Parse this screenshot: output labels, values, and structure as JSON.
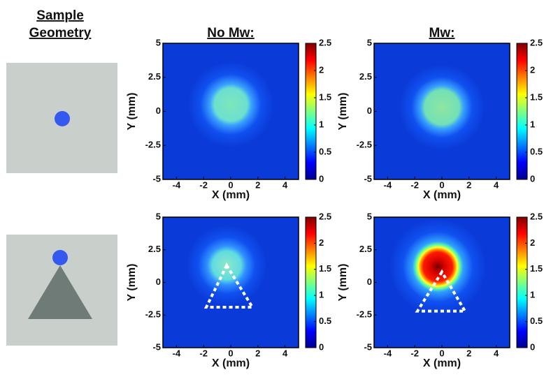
{
  "figure": {
    "geometry_title": [
      "Sample",
      "Geometry"
    ],
    "column_titles": [
      "No Mw:",
      "Mw:"
    ]
  },
  "chart_data": [
    {
      "type": "heatmap",
      "xlabel": "X (mm)",
      "ylabel": "Y (mm)",
      "xlim": [
        -5,
        5
      ],
      "ylim": [
        -5,
        5
      ],
      "xticks": [
        -4,
        -2,
        0,
        2,
        4
      ],
      "yticks": [
        -5,
        -2.5,
        0,
        2.5,
        5
      ],
      "zlim": [
        0,
        2.5
      ],
      "zticks": [
        0,
        0.5,
        1,
        1.5,
        2,
        2.5
      ],
      "colormap": "jet"
    },
    {
      "type": "heatmap",
      "xlabel": "X (mm)",
      "ylabel": "Y (mm)",
      "xlim": [
        -5,
        5
      ],
      "ylim": [
        -5,
        5
      ],
      "xticks": [
        -4,
        -2,
        0,
        2,
        4
      ],
      "yticks": [
        -5,
        -2.5,
        0,
        2.5,
        5
      ],
      "zlim": [
        0,
        2.5
      ],
      "zticks": [
        0,
        0.5,
        1,
        1.5,
        2,
        2.5
      ],
      "colormap": "jet"
    },
    {
      "type": "heatmap",
      "xlabel": "X (mm)",
      "ylabel": "Y (mm)",
      "xlim": [
        -5,
        5
      ],
      "ylim": [
        -5,
        5
      ],
      "xticks": [
        -4,
        -2,
        0,
        2,
        4
      ],
      "yticks": [
        -5,
        -2.5,
        0,
        2.5,
        5
      ],
      "zlim": [
        0,
        2.5
      ],
      "zticks": [
        0,
        0.5,
        1,
        1.5,
        2,
        2.5
      ],
      "colormap": "jet"
    },
    {
      "type": "heatmap",
      "xlabel": "X (mm)",
      "ylabel": "Y (mm)",
      "xlim": [
        -5,
        5
      ],
      "ylim": [
        -5,
        5
      ],
      "xticks": [
        -4,
        -2,
        0,
        2,
        4
      ],
      "yticks": [
        -5,
        -2.5,
        0,
        2.5,
        5
      ],
      "zlim": [
        0,
        2.5
      ],
      "zticks": [
        0,
        0.5,
        1,
        1.5,
        2,
        2.5
      ],
      "colormap": "jet"
    }
  ]
}
